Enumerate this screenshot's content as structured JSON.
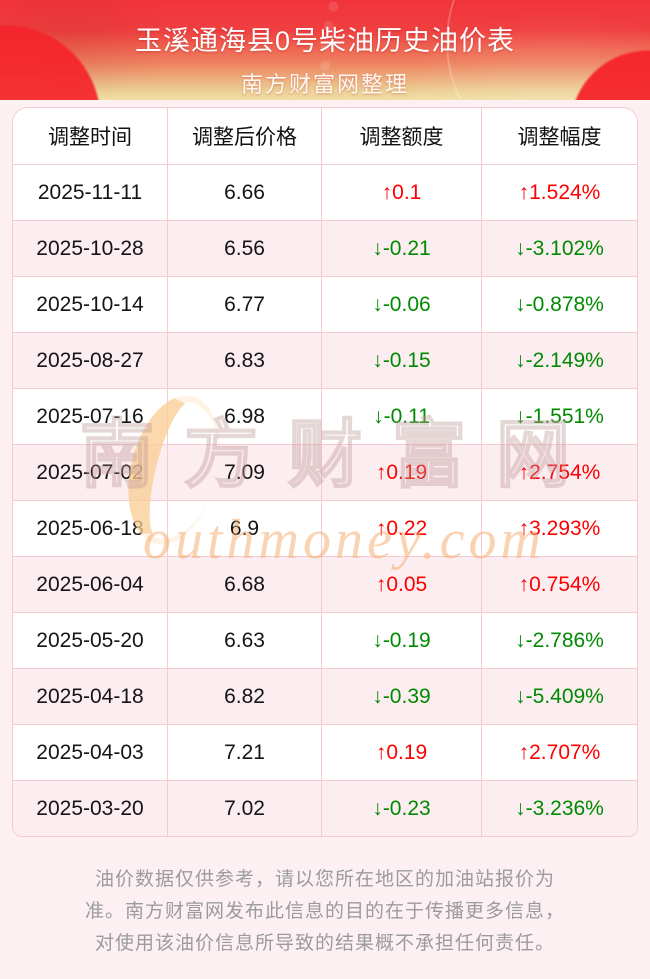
{
  "header": {
    "title": "玉溪通海县0号柴油历史油价表",
    "subtitle": "南方财富网整理"
  },
  "table": {
    "columns": [
      "调整时间",
      "调整后价格",
      "调整额度",
      "调整幅度"
    ],
    "rows": [
      {
        "date": "2025-11-11",
        "price": "6.66",
        "change": "↑0.1",
        "percent": "↑1.524%",
        "direction": "up"
      },
      {
        "date": "2025-10-28",
        "price": "6.56",
        "change": "↓-0.21",
        "percent": "↓-3.102%",
        "direction": "down"
      },
      {
        "date": "2025-10-14",
        "price": "6.77",
        "change": "↓-0.06",
        "percent": "↓-0.878%",
        "direction": "down"
      },
      {
        "date": "2025-08-27",
        "price": "6.83",
        "change": "↓-0.15",
        "percent": "↓-2.149%",
        "direction": "down"
      },
      {
        "date": "2025-07-16",
        "price": "6.98",
        "change": "↓-0.11",
        "percent": "↓-1.551%",
        "direction": "down"
      },
      {
        "date": "2025-07-02",
        "price": "7.09",
        "change": "↑0.19",
        "percent": "↑2.754%",
        "direction": "up"
      },
      {
        "date": "2025-06-18",
        "price": "6.9",
        "change": "↑0.22",
        "percent": "↑3.293%",
        "direction": "up"
      },
      {
        "date": "2025-06-04",
        "price": "6.68",
        "change": "↑0.05",
        "percent": "↑0.754%",
        "direction": "up"
      },
      {
        "date": "2025-05-20",
        "price": "6.63",
        "change": "↓-0.19",
        "percent": "↓-2.786%",
        "direction": "down"
      },
      {
        "date": "2025-04-18",
        "price": "6.82",
        "change": "↓-0.39",
        "percent": "↓-5.409%",
        "direction": "down"
      },
      {
        "date": "2025-04-03",
        "price": "7.21",
        "change": "↑0.19",
        "percent": "↑2.707%",
        "direction": "up"
      },
      {
        "date": "2025-03-20",
        "price": "7.02",
        "change": "↓-0.23",
        "percent": "↓-3.236%",
        "direction": "down"
      }
    ]
  },
  "watermark": {
    "cn": "南方财富网",
    "en": "outhmoney.com",
    "s_glyph": ""
  },
  "footer": {
    "lines": [
      "油价数据仅供参考，请以您所在地区的加油站报价为",
      "准。南方财富网发布此信息的目的在于传播更多信息，",
      "对使用该油价信息所导致的结果概不承担任何责任。"
    ]
  },
  "colors": {
    "up_red": "#fe0000",
    "down_green": "#008a00",
    "banner_red": "#f1333b",
    "page_pink": "#fdf0f3",
    "grid_line_pink": "#f7cad1",
    "alt_row_pink": "#fcedf1"
  }
}
